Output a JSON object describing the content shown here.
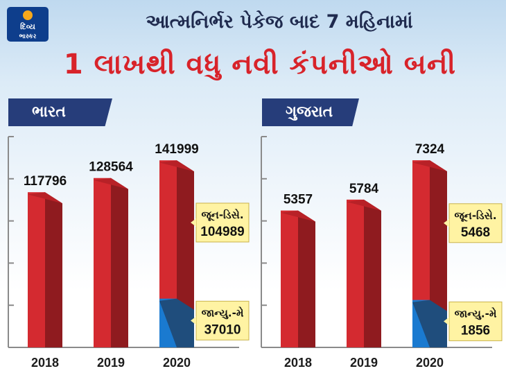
{
  "brand": {
    "logo_line1": "દિવ્ય",
    "logo_line2": "ભાસ્કર"
  },
  "title_line1": "આત્મનિર્ભર પેકેજ બાદ 7 મહિનામાં",
  "title_line2": "1 લાખથી વધુ નવી કંપનીઓ બની",
  "colors": {
    "bar_red": "#d42a30",
    "bar_red_side": "#8f1b1f",
    "bar_blue": "#1a7ad0",
    "bar_blue_side": "#1f4d7c",
    "callout_bg": "#fff3a3",
    "label_bg": "#263d7a",
    "title_red": "#d8232a"
  },
  "chart_data": [
    {
      "type": "bar",
      "title": "ભારત",
      "categories": [
        "2018",
        "2019",
        "2020"
      ],
      "values": [
        117796,
        128564,
        141999
      ],
      "breakdown_2020": [
        {
          "label": "જાન્યુ.-મે",
          "value": 37010
        },
        {
          "label": "જૂન-ડિસે.",
          "value": 104989
        }
      ],
      "ylim": [
        0,
        160000
      ]
    },
    {
      "type": "bar",
      "title": "ગુજરાત",
      "categories": [
        "2018",
        "2019",
        "2020"
      ],
      "values": [
        5357,
        5784,
        7324
      ],
      "breakdown_2020": [
        {
          "label": "જાન્યુ.-મે",
          "value": 1856
        },
        {
          "label": "જૂન-ડિસે.",
          "value": 5468
        }
      ],
      "ylim": [
        0,
        8250
      ]
    }
  ]
}
